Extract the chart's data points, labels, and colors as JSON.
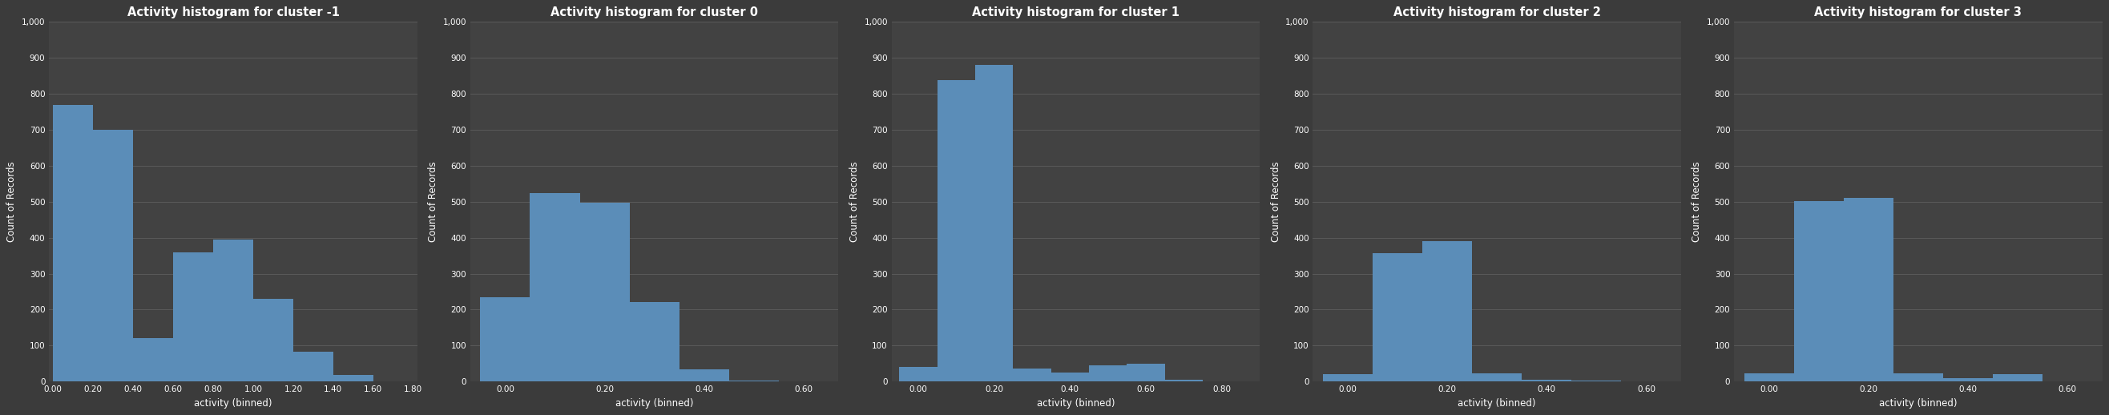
{
  "clusters": [
    {
      "title": "Activity histogram for cluster -1",
      "bar_lefts": [
        0.0,
        0.2,
        0.4,
        0.6,
        0.8,
        1.0,
        1.2,
        1.4
      ],
      "bar_heights": [
        770,
        700,
        120,
        360,
        395,
        230,
        82,
        18
      ],
      "bar_width": 0.2,
      "xlim": [
        -0.02,
        1.82
      ],
      "xticks": [
        0.0,
        0.2,
        0.4,
        0.6,
        0.8,
        1.0,
        1.2,
        1.4,
        1.6,
        1.8
      ]
    },
    {
      "title": "Activity histogram for cluster 0",
      "bar_lefts": [
        -0.05,
        0.05,
        0.15,
        0.25,
        0.35,
        0.45
      ],
      "bar_heights": [
        235,
        525,
        498,
        220,
        35,
        2
      ],
      "bar_width": 0.1,
      "xlim": [
        -0.07,
        0.67
      ],
      "xticks": [
        0.0,
        0.2,
        0.4,
        0.6
      ]
    },
    {
      "title": "Activity histogram for cluster 1",
      "bar_lefts": [
        -0.05,
        0.05,
        0.15,
        0.25,
        0.35,
        0.45,
        0.55,
        0.65
      ],
      "bar_heights": [
        40,
        838,
        880,
        37,
        25,
        45,
        50,
        5
      ],
      "bar_width": 0.1,
      "xlim": [
        -0.07,
        0.9
      ],
      "xticks": [
        0.0,
        0.2,
        0.4,
        0.6,
        0.8
      ]
    },
    {
      "title": "Activity histogram for cluster 2",
      "bar_lefts": [
        -0.05,
        0.05,
        0.15,
        0.25,
        0.35,
        0.45
      ],
      "bar_heights": [
        20,
        358,
        390,
        22,
        5,
        2
      ],
      "bar_width": 0.1,
      "xlim": [
        -0.07,
        0.67
      ],
      "xticks": [
        0.0,
        0.2,
        0.4,
        0.6
      ]
    },
    {
      "title": "Activity histogram for cluster 3",
      "bar_lefts": [
        -0.05,
        0.05,
        0.15,
        0.25,
        0.35,
        0.45
      ],
      "bar_heights": [
        22,
        502,
        510,
        22,
        10,
        20
      ],
      "bar_width": 0.1,
      "xlim": [
        -0.07,
        0.67
      ],
      "xticks": [
        0.0,
        0.2,
        0.4,
        0.6
      ]
    }
  ],
  "ylim": [
    0,
    1000
  ],
  "yticks": [
    0,
    100,
    200,
    300,
    400,
    500,
    600,
    700,
    800,
    900,
    1000
  ],
  "bar_color": "#5b8db8",
  "bg_color": "#3b3b3b",
  "axes_bg_color": "#424242",
  "text_color": "#ffffff",
  "grid_color": "#5e5e5e",
  "ylabel": "Count of Records",
  "xlabel": "activity (binned)",
  "title_fontsize": 10.5,
  "label_fontsize": 8.5,
  "tick_fontsize": 7.5
}
